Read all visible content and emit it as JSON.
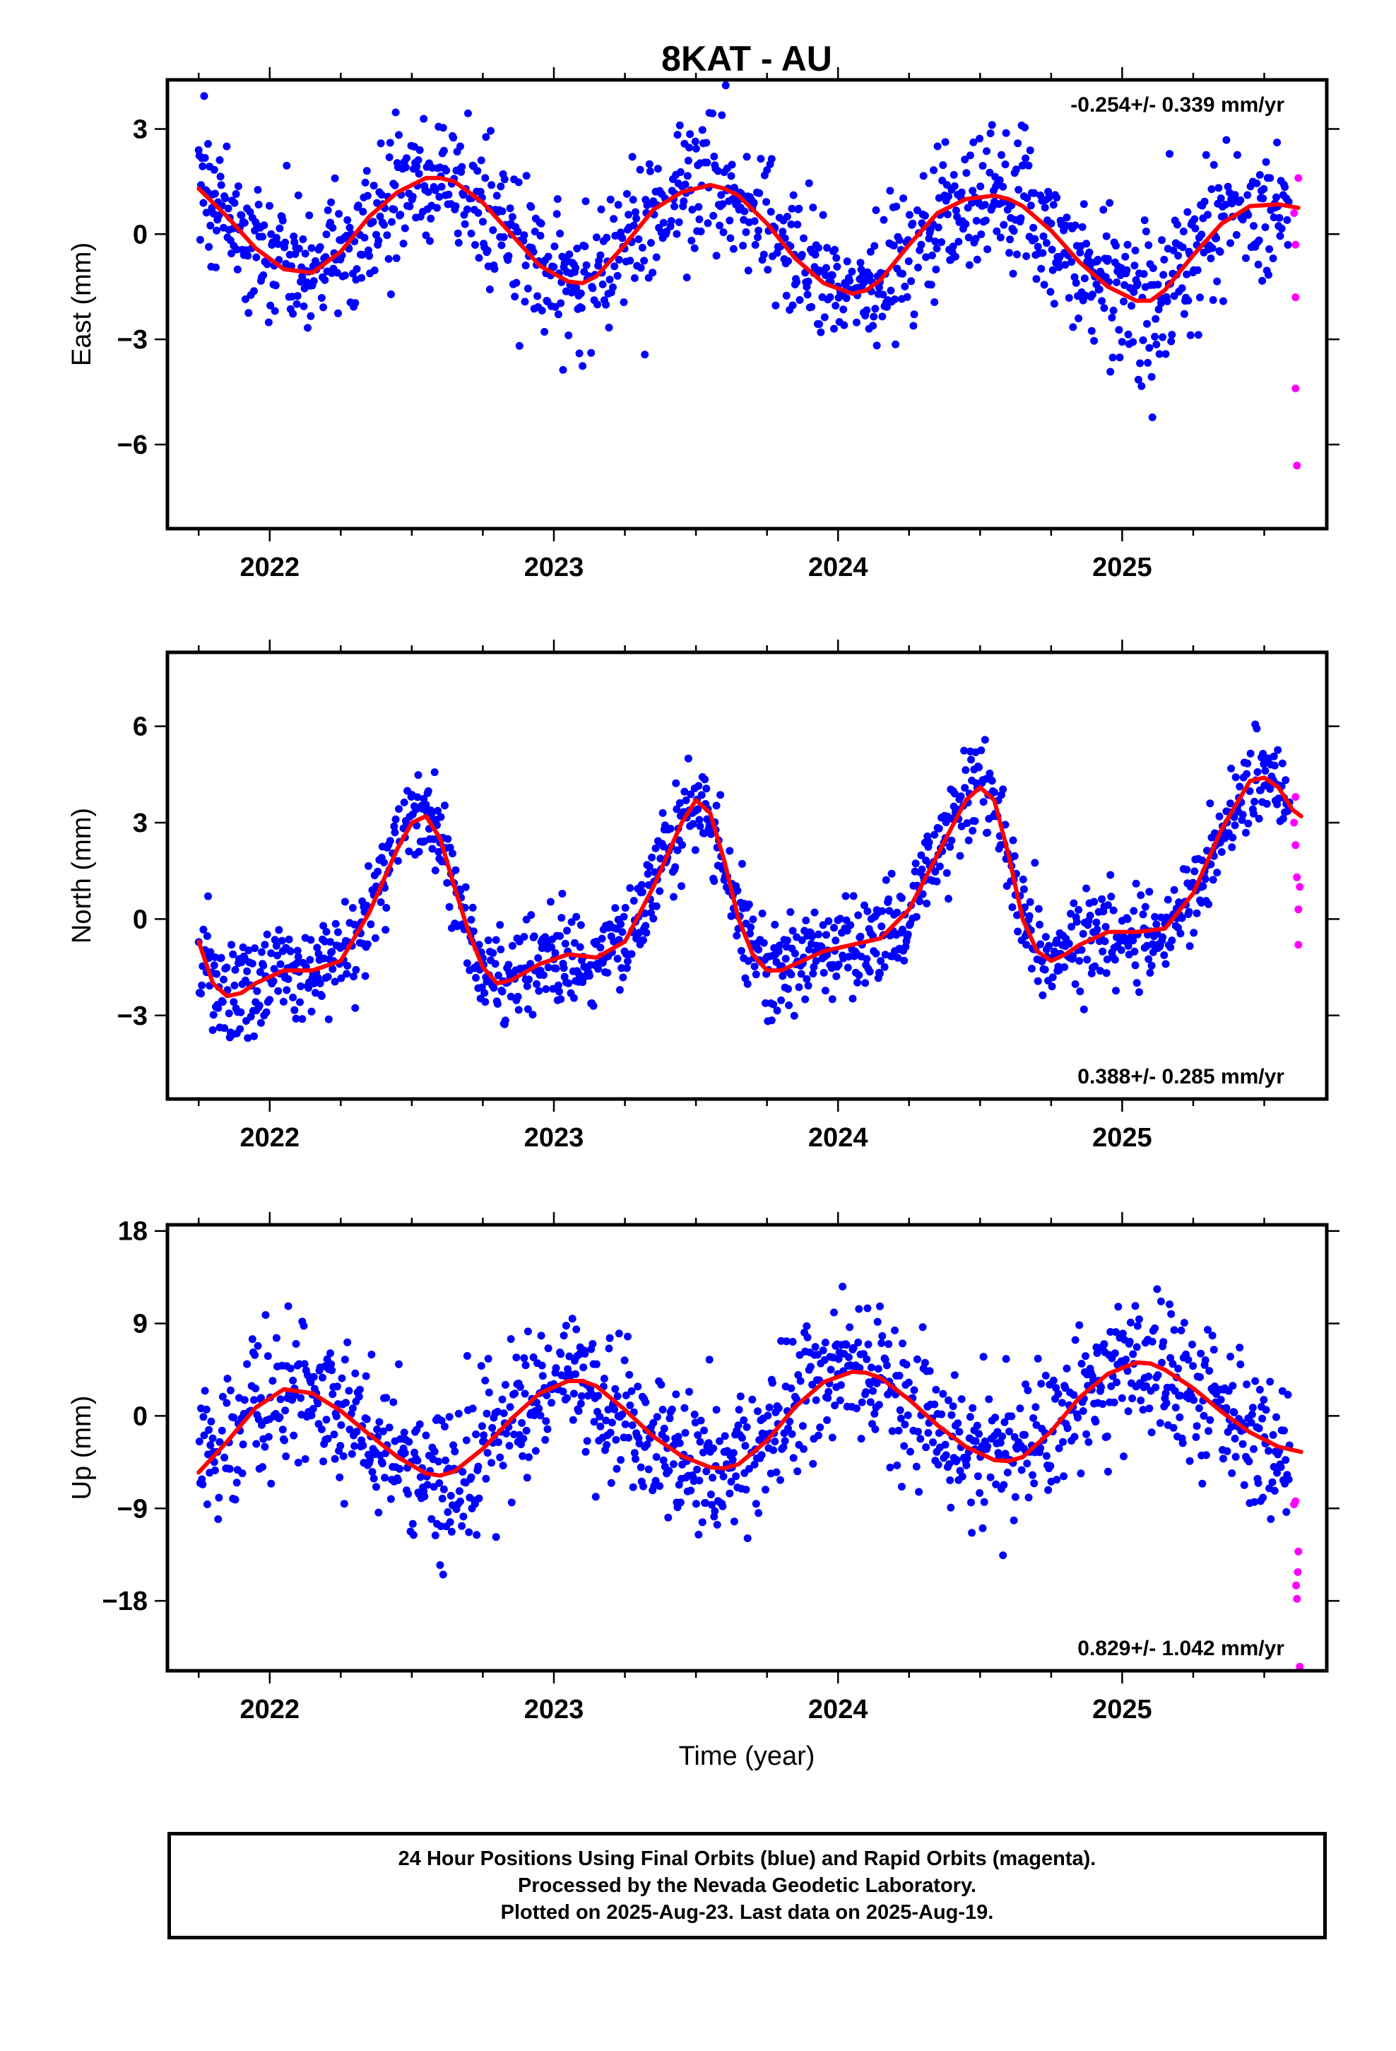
{
  "figure": {
    "title": "8KAT - AU",
    "xlabel": "Time (year)",
    "footer": [
      "24 Hour Positions Using Final Orbits (blue) and Rapid Orbits (magenta).",
      "Processed by the Nevada Geodetic Laboratory.",
      "Plotted on 2025-Aug-23. Last data on 2025-Aug-19."
    ],
    "colors": {
      "final": "#0000ff",
      "rapid": "#ff00ff",
      "fit": "#ff0000",
      "axes": "#000000"
    }
  },
  "chart_data": [
    {
      "type": "scatter",
      "component": "east",
      "ylabel": "East (mm)",
      "rate_label": "-0.254+/- 0.339 mm/yr",
      "rate_position": "top-right",
      "xlim": [
        2021.64,
        2025.72
      ],
      "ylim": [
        -8.4,
        4.4
      ],
      "yticks": [
        3,
        0,
        -3,
        -6
      ],
      "ytick_labels": [
        "3",
        "0",
        "−3",
        "−6"
      ],
      "xticks": [
        2022,
        2023,
        2024,
        2025
      ],
      "xtick_labels": [
        "2022",
        "2023",
        "2024",
        "2025"
      ],
      "grid": false,
      "series": [
        {
          "role": "final",
          "date_range": [
            2021.75,
            2025.59
          ],
          "day_step": 0.00274,
          "scatter_sd": 1.0,
          "note_shape": "Daily GPS positions scattered around the annual fit"
        },
        {
          "role": "fit",
          "x": [
            2021.75,
            2021.85,
            2021.95,
            2022.05,
            2022.15,
            2022.25,
            2022.35,
            2022.45,
            2022.55,
            2022.6,
            2022.65,
            2022.75,
            2022.85,
            2022.95,
            2023.05,
            2023.1,
            2023.15,
            2023.25,
            2023.35,
            2023.45,
            2023.55,
            2023.6,
            2023.65,
            2023.75,
            2023.85,
            2023.95,
            2024.05,
            2024.1,
            2024.15,
            2024.25,
            2024.35,
            2024.45,
            2024.55,
            2024.6,
            2024.65,
            2024.75,
            2024.85,
            2024.95,
            2025.05,
            2025.1,
            2025.15,
            2025.25,
            2025.35,
            2025.45,
            2025.55,
            2025.62
          ],
          "y": [
            1.3,
            0.5,
            -0.4,
            -1.0,
            -1.1,
            -0.5,
            0.5,
            1.2,
            1.6,
            1.6,
            1.5,
            0.9,
            0.0,
            -0.9,
            -1.35,
            -1.4,
            -1.2,
            -0.3,
            0.7,
            1.2,
            1.4,
            1.3,
            1.1,
            0.3,
            -0.7,
            -1.4,
            -1.7,
            -1.6,
            -1.3,
            -0.3,
            0.6,
            1.0,
            1.1,
            1.0,
            0.8,
            0.1,
            -0.8,
            -1.5,
            -1.9,
            -1.9,
            -1.6,
            -0.6,
            0.3,
            0.8,
            0.85,
            0.75
          ]
        },
        {
          "role": "rapid",
          "x": [
            2025.605,
            2025.61,
            2025.61,
            2025.61,
            2025.615,
            2025.62
          ],
          "y": [
            0.6,
            -0.3,
            -1.8,
            -4.4,
            -6.6,
            1.6
          ]
        }
      ]
    },
    {
      "type": "scatter",
      "component": "north",
      "ylabel": "North (mm)",
      "rate_label": "0.388+/- 0.285 mm/yr",
      "rate_position": "bottom-right",
      "xlim": [
        2021.64,
        2025.72
      ],
      "ylim": [
        -5.6,
        8.3
      ],
      "yticks": [
        6,
        3,
        0,
        -3
      ],
      "ytick_labels": [
        "6",
        "3",
        "0",
        "−3"
      ],
      "xticks": [
        2022,
        2023,
        2024,
        2025
      ],
      "xtick_labels": [
        "2022",
        "2023",
        "2024",
        "2025"
      ],
      "grid": false,
      "series": [
        {
          "role": "final",
          "date_range": [
            2021.75,
            2025.59
          ],
          "day_step": 0.00274,
          "scatter_sd": 0.75,
          "note_shape": "Daily GPS positions scattered around the annual fit"
        },
        {
          "role": "fit",
          "x": [
            2021.75,
            2021.8,
            2021.85,
            2021.9,
            2021.95,
            2022.05,
            2022.15,
            2022.25,
            2022.35,
            2022.45,
            2022.5,
            2022.55,
            2022.6,
            2022.65,
            2022.7,
            2022.75,
            2022.8,
            2022.85,
            2022.95,
            2023.05,
            2023.15,
            2023.25,
            2023.35,
            2023.45,
            2023.5,
            2023.55,
            2023.6,
            2023.65,
            2023.7,
            2023.75,
            2023.8,
            2023.85,
            2023.95,
            2024.05,
            2024.15,
            2024.25,
            2024.35,
            2024.45,
            2024.5,
            2024.55,
            2024.6,
            2024.65,
            2024.7,
            2024.75,
            2024.8,
            2024.85,
            2024.95,
            2025.05,
            2025.15,
            2025.25,
            2025.35,
            2025.45,
            2025.5,
            2025.55,
            2025.6,
            2025.63
          ],
          "y": [
            -0.7,
            -2.0,
            -2.4,
            -2.3,
            -2.0,
            -1.6,
            -1.6,
            -1.3,
            0.2,
            2.2,
            3.0,
            3.2,
            2.5,
            1.0,
            -0.4,
            -1.5,
            -2.0,
            -1.9,
            -1.4,
            -1.1,
            -1.2,
            -0.7,
            1.0,
            3.0,
            3.7,
            3.3,
            1.8,
            0.0,
            -1.1,
            -1.6,
            -1.6,
            -1.4,
            -1.0,
            -0.8,
            -0.6,
            0.3,
            2.0,
            3.7,
            4.1,
            3.7,
            2.0,
            0.0,
            -1.0,
            -1.3,
            -1.1,
            -0.8,
            -0.4,
            -0.4,
            -0.3,
            0.8,
            2.8,
            4.3,
            4.4,
            4.1,
            3.4,
            3.2
          ]
        },
        {
          "role": "rapid",
          "x": [
            2025.605,
            2025.61,
            2025.61,
            2025.615,
            2025.62,
            2025.62,
            2025.625
          ],
          "y": [
            3.0,
            3.8,
            2.3,
            1.3,
            0.3,
            -0.8,
            1.0
          ]
        }
      ]
    },
    {
      "type": "scatter",
      "component": "up",
      "ylabel": "Up (mm)",
      "rate_label": "0.829+/- 1.042 mm/yr",
      "rate_position": "bottom-right",
      "xlim": [
        2021.64,
        2025.72
      ],
      "ylim": [
        -24.8,
        18.6
      ],
      "yticks": [
        18,
        9,
        0,
        -9,
        -18
      ],
      "ytick_labels": [
        "18",
        "9",
        "0",
        "−9",
        "−18"
      ],
      "xticks": [
        2022,
        2023,
        2024,
        2025
      ],
      "xtick_labels": [
        "2022",
        "2023",
        "2024",
        "2025"
      ],
      "grid": false,
      "series": [
        {
          "role": "final",
          "date_range": [
            2021.75,
            2025.59
          ],
          "day_step": 0.00274,
          "scatter_sd": 3.4,
          "note_shape": "Daily GPS positions scattered around the annual fit"
        },
        {
          "role": "fit",
          "x": [
            2021.75,
            2021.85,
            2021.95,
            2022.05,
            2022.15,
            2022.25,
            2022.35,
            2022.45,
            2022.55,
            2022.6,
            2022.65,
            2022.75,
            2022.85,
            2022.95,
            2023.05,
            2023.1,
            2023.15,
            2023.25,
            2023.35,
            2023.45,
            2023.55,
            2023.6,
            2023.65,
            2023.75,
            2023.85,
            2023.95,
            2024.05,
            2024.1,
            2024.15,
            2024.25,
            2024.35,
            2024.45,
            2024.55,
            2024.6,
            2024.65,
            2024.75,
            2024.85,
            2024.95,
            2025.05,
            2025.1,
            2025.15,
            2025.25,
            2025.35,
            2025.45,
            2025.55,
            2025.63
          ],
          "y": [
            -5.5,
            -2.5,
            0.8,
            2.6,
            2.2,
            0.5,
            -1.8,
            -4.0,
            -5.6,
            -5.8,
            -5.4,
            -3.2,
            -0.3,
            2.2,
            3.4,
            3.4,
            2.9,
            0.6,
            -2.0,
            -3.9,
            -5.0,
            -5.1,
            -4.7,
            -2.4,
            0.9,
            3.3,
            4.3,
            4.2,
            3.7,
            1.6,
            -0.9,
            -3.0,
            -4.3,
            -4.4,
            -4.0,
            -1.5,
            1.8,
            4.1,
            5.2,
            5.1,
            4.5,
            2.7,
            0.4,
            -1.6,
            -3.0,
            -3.5
          ]
        },
        {
          "role": "rapid",
          "x": [
            2025.605,
            2025.61,
            2025.612,
            2025.615,
            2025.618,
            2025.62,
            2025.625
          ],
          "y": [
            -8.6,
            -8.3,
            -16.5,
            -17.8,
            -15.2,
            -13.2,
            -24.4
          ]
        }
      ]
    }
  ]
}
